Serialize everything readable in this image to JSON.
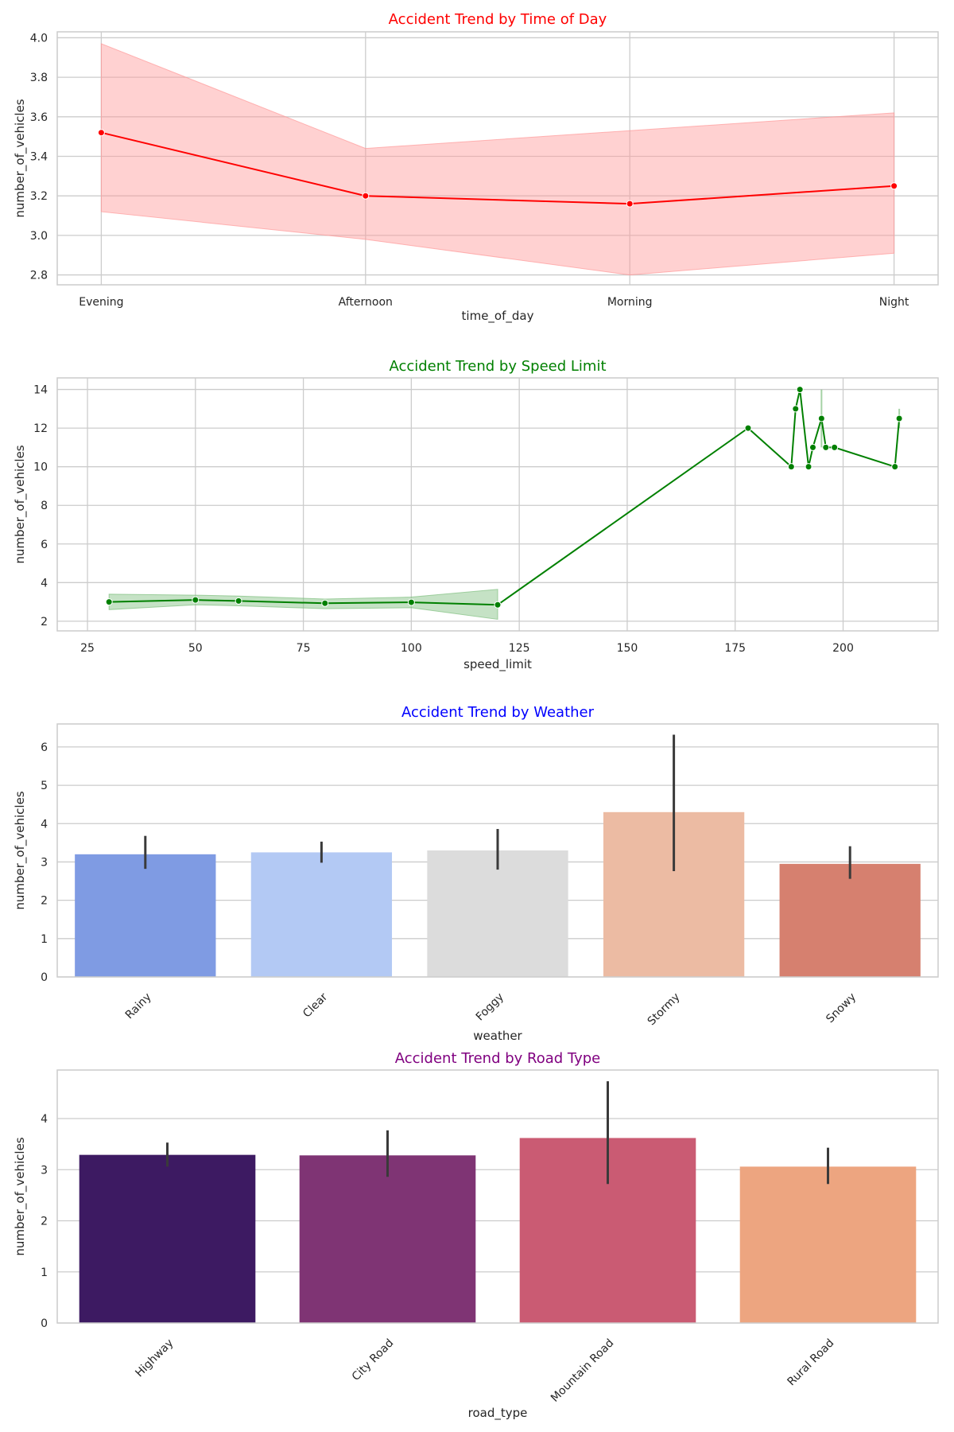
{
  "chart_data": [
    {
      "type": "line",
      "title": "Accident Trend by Time of Day",
      "title_color": "#ff0000",
      "xlabel": "time_of_day",
      "ylabel": "number_of_vehicles",
      "color": "#ff0000",
      "band_color": "#ff9999",
      "categories": [
        "Evening",
        "Afternoon",
        "Morning",
        "Night"
      ],
      "values": [
        3.52,
        3.2,
        3.16,
        3.25
      ],
      "ci_low": [
        3.12,
        2.98,
        2.8,
        2.91
      ],
      "ci_high": [
        3.97,
        3.44,
        3.53,
        3.62
      ],
      "ylim": [
        2.75,
        4.03
      ],
      "yticks": [
        2.8,
        3.0,
        3.2,
        3.4,
        3.6,
        3.8,
        4.0
      ],
      "ytick_labels": [
        "2.8",
        "3.0",
        "3.2",
        "3.4",
        "3.6",
        "3.8",
        "4.0"
      ],
      "grid": true
    },
    {
      "type": "line",
      "title": "Accident Trend by Speed Limit",
      "title_color": "#008000",
      "xlabel": "speed_limit",
      "ylabel": "number_of_vehicles",
      "color": "#008000",
      "band_color": "#7fbf7f",
      "x": [
        30,
        50,
        60,
        80,
        100,
        120,
        178,
        188,
        189,
        190,
        192,
        193,
        195,
        196,
        198,
        212,
        213
      ],
      "values": [
        3.0,
        3.1,
        3.05,
        2.93,
        2.98,
        2.85,
        12,
        10,
        13,
        14,
        10,
        11,
        12.5,
        11,
        11,
        10,
        12.5
      ],
      "ci_low": [
        2.6,
        2.85,
        2.8,
        2.65,
        2.7,
        2.1,
        null,
        null,
        null,
        null,
        null,
        null,
        11,
        null,
        null,
        null,
        12
      ],
      "ci_high": [
        3.4,
        3.35,
        3.3,
        3.15,
        3.25,
        3.65,
        null,
        null,
        null,
        null,
        null,
        null,
        14,
        null,
        null,
        null,
        13
      ],
      "xlim": [
        18,
        222
      ],
      "ylim": [
        1.5,
        14.6
      ],
      "xticks": [
        25,
        50,
        75,
        100,
        125,
        150,
        175,
        200
      ],
      "xtick_labels": [
        "25",
        "50",
        "75",
        "100",
        "125",
        "150",
        "175",
        "200"
      ],
      "yticks": [
        2,
        4,
        6,
        8,
        10,
        12,
        14
      ],
      "ytick_labels": [
        "2",
        "4",
        "6",
        "8",
        "10",
        "12",
        "14"
      ],
      "grid": true
    },
    {
      "type": "bar",
      "title": "Accident Trend by Weather",
      "title_color": "#0000ff",
      "xlabel": "weather",
      "ylabel": "number_of_vehicles",
      "categories": [
        "Rainy",
        "Clear",
        "Foggy",
        "Stormy",
        "Snowy"
      ],
      "values": [
        3.2,
        3.25,
        3.3,
        4.3,
        2.95
      ],
      "ci_low": [
        2.82,
        2.98,
        2.8,
        2.76,
        2.56
      ],
      "ci_high": [
        3.68,
        3.53,
        3.86,
        6.32,
        3.41
      ],
      "colors": [
        "#7f9be3",
        "#b3c9f4",
        "#dcdcdc",
        "#ecbba3",
        "#d6806f"
      ],
      "ylim": [
        0,
        6.6
      ],
      "yticks": [
        0,
        1,
        2,
        3,
        4,
        5,
        6
      ],
      "ytick_labels": [
        "0",
        "1",
        "2",
        "3",
        "4",
        "5",
        "6"
      ],
      "grid": true
    },
    {
      "type": "bar",
      "title": "Accident Trend by Road Type",
      "title_color": "#800080",
      "xlabel": "road_type",
      "ylabel": "number_of_vehicles",
      "categories": [
        "Highway",
        "City Road",
        "Mountain Road",
        "Rural Road"
      ],
      "values": [
        3.29,
        3.28,
        3.62,
        3.06
      ],
      "ci_low": [
        3.06,
        2.86,
        2.72,
        2.72
      ],
      "ci_high": [
        3.53,
        3.77,
        4.73,
        3.43
      ],
      "colors": [
        "#3d1a62",
        "#7f3474",
        "#ca5b73",
        "#eda580"
      ],
      "ylim": [
        0,
        4.95
      ],
      "yticks": [
        0,
        1,
        2,
        3,
        4
      ],
      "ytick_labels": [
        "0",
        "1",
        "2",
        "3",
        "4"
      ],
      "grid": true
    }
  ]
}
